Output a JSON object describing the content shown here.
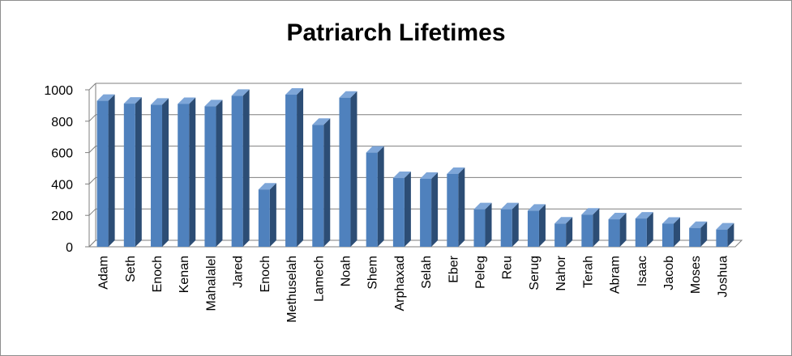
{
  "chart_data": {
    "type": "bar",
    "title": "Patriarch Lifetimes",
    "xlabel": "",
    "ylabel": "",
    "ylim": [
      0,
      1000
    ],
    "yticks": [
      0,
      200,
      400,
      600,
      800,
      1000
    ],
    "grid": true,
    "legend": "none",
    "bar_color": "#4f81bd",
    "categories": [
      "Adam",
      "Seth",
      "Enoch",
      "Kenan",
      "Mahalalel",
      "Jared",
      "Enoch",
      "Methuselah",
      "Lamech",
      "Noah",
      "Shem",
      "Arphaxad",
      "Selah",
      "Eber",
      "Peleg",
      "Reu",
      "Serug",
      "Nahor",
      "Terah",
      "Abram",
      "Isaac",
      "Jacob",
      "Moses",
      "Joshua"
    ],
    "values": [
      930,
      912,
      905,
      910,
      895,
      962,
      365,
      969,
      777,
      950,
      600,
      438,
      433,
      464,
      239,
      239,
      230,
      148,
      205,
      175,
      180,
      147,
      120,
      110
    ]
  }
}
